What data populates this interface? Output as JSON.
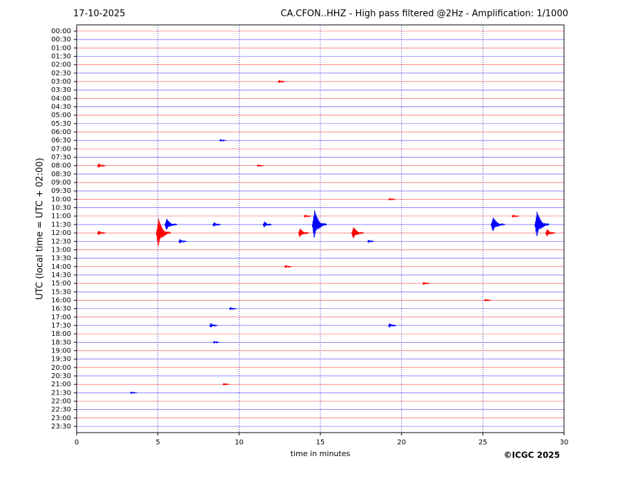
{
  "chart_data": {
    "type": "helicorder",
    "date": "17-10-2025",
    "title": "CA.CFON..HHZ - High pass filtered @2Hz - Amplification: 1/1000",
    "ylabel": "UTC (local time = UTC + 02:00)",
    "xlabel": "time in minutes",
    "credit": "©ICGC 2025",
    "categories": [
      "00:00",
      "00:30",
      "01:00",
      "01:30",
      "02:00",
      "02:30",
      "03:00",
      "03:30",
      "04:00",
      "04:30",
      "05:00",
      "05:30",
      "06:00",
      "06:30",
      "07:00",
      "07:30",
      "08:00",
      "08:30",
      "09:00",
      "09:30",
      "10:00",
      "10:30",
      "11:00",
      "11:30",
      "12:00",
      "12:30",
      "13:00",
      "13:30",
      "14:00",
      "14:30",
      "15:00",
      "15:30",
      "16:00",
      "16:30",
      "17:00",
      "17:30",
      "18:00",
      "18:30",
      "19:00",
      "19:30",
      "20:00",
      "20:30",
      "21:00",
      "21:30",
      "22:00",
      "22:30",
      "23:00",
      "23:30"
    ],
    "colors": [
      "#ff0000",
      "#0000ff"
    ],
    "xlim": [
      0,
      30
    ],
    "xticks": [
      0,
      5,
      10,
      15,
      20,
      25,
      30
    ],
    "grid": true,
    "events": {
      "row": [
        6,
        13,
        16,
        16,
        20,
        22,
        22,
        23,
        23,
        23,
        23,
        23,
        23,
        24,
        24,
        24,
        24,
        24,
        25,
        25,
        28,
        30,
        32,
        33,
        35,
        35,
        37,
        42,
        43
      ],
      "x": [
        12.5,
        8.9,
        1.4,
        11.2,
        19.3,
        14.1,
        26.9,
        5.6,
        8.5,
        11.6,
        14.7,
        25.7,
        28.4,
        5.1,
        13.8,
        17.1,
        29.0,
        1.4,
        6.4,
        18.0,
        12.9,
        21.4,
        25.2,
        9.5,
        8.3,
        19.3,
        8.5,
        9.1,
        3.4
      ],
      "amplitude": [
        0.2,
        0.15,
        0.3,
        0.15,
        0.15,
        0.2,
        0.2,
        0.8,
        0.3,
        0.4,
        2.0,
        1.0,
        1.8,
        2.0,
        0.6,
        0.8,
        0.5,
        0.3,
        0.3,
        0.2,
        0.2,
        0.2,
        0.15,
        0.2,
        0.3,
        0.3,
        0.15,
        0.15,
        0.15
      ]
    }
  }
}
